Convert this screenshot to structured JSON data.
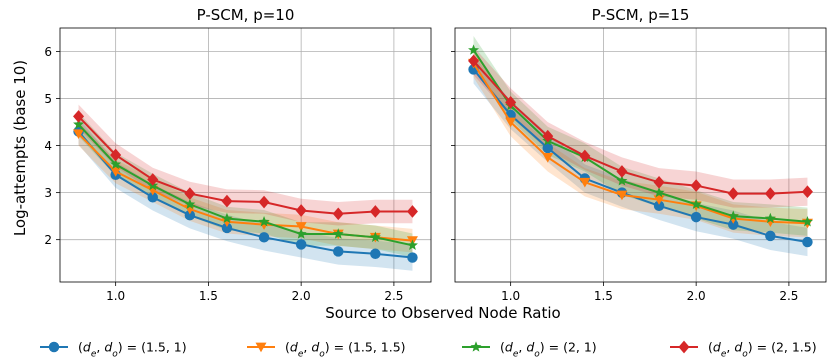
{
  "chart_data": {
    "type": "line",
    "ylabel": "Log-attempts (base 10)",
    "xlabel": "Source to Observed Node Ratio",
    "xlim": [
      0.7,
      2.7
    ],
    "ylim": [
      1.1,
      6.5
    ],
    "xticks": [
      "1.0",
      "1.5",
      "2.0",
      "2.5"
    ],
    "yticks": [
      "2",
      "3",
      "4",
      "5",
      "6"
    ],
    "grid": true,
    "legend_placement": "bottom",
    "series_styles": [
      {
        "color": "#1f77b4",
        "marker": "circle"
      },
      {
        "color": "#ff7f0e",
        "marker": "triangle-down"
      },
      {
        "color": "#2ca02c",
        "marker": "star"
      },
      {
        "color": "#d62728",
        "marker": "diamond"
      }
    ],
    "legend": [
      {
        "pre": "(",
        "d1": "d",
        "s1": "e",
        "mid": ", ",
        "d2": "d",
        "s2": "o",
        "post": ") = (1.5, 1)"
      },
      {
        "pre": "(",
        "d1": "d",
        "s1": "e",
        "mid": ", ",
        "d2": "d",
        "s2": "o",
        "post": ") = (1.5, 1.5)"
      },
      {
        "pre": "(",
        "d1": "d",
        "s1": "e",
        "mid": ", ",
        "d2": "d",
        "s2": "o",
        "post": ") = (2, 1)"
      },
      {
        "pre": "(",
        "d1": "d",
        "s1": "e",
        "mid": ", ",
        "d2": "d",
        "s2": "o",
        "post": ") = (2, 1.5)"
      }
    ],
    "panels": [
      {
        "title": "P-SCM, p=10",
        "x": [
          0.8,
          1.0,
          1.2,
          1.4,
          1.6,
          1.8,
          2.0,
          2.2,
          2.4,
          2.6
        ],
        "series": [
          {
            "values": [
              4.3,
              3.38,
              2.9,
              2.52,
              2.25,
              2.05,
              1.9,
              1.75,
              1.7,
              1.62
            ],
            "band": 0.28
          },
          {
            "values": [
              4.25,
              3.45,
              3.05,
              2.65,
              2.38,
              2.32,
              2.28,
              2.12,
              2.05,
              1.98
            ],
            "band": 0.25
          },
          {
            "values": [
              4.45,
              3.6,
              3.15,
              2.75,
              2.45,
              2.38,
              2.12,
              2.12,
              2.05,
              1.88
            ],
            "band": 0.25
          },
          {
            "values": [
              4.62,
              3.8,
              3.28,
              2.98,
              2.82,
              2.8,
              2.62,
              2.55,
              2.6,
              2.6
            ],
            "band": 0.25
          }
        ]
      },
      {
        "title": "P-SCM, p=15",
        "x": [
          0.8,
          1.0,
          1.2,
          1.4,
          1.6,
          1.8,
          2.0,
          2.2,
          2.4,
          2.6
        ],
        "series": [
          {
            "values": [
              5.62,
              4.65,
              3.95,
              3.3,
              3.0,
              2.72,
              2.48,
              2.32,
              2.08,
              1.95
            ],
            "band": 0.3
          },
          {
            "values": [
              5.75,
              4.5,
              3.75,
              3.22,
              2.95,
              2.85,
              2.72,
              2.45,
              2.38,
              2.35
            ],
            "band": 0.3
          },
          {
            "values": [
              6.03,
              4.85,
              4.1,
              3.75,
              3.25,
              3.0,
              2.75,
              2.5,
              2.45,
              2.38
            ],
            "band": 0.3
          },
          {
            "values": [
              5.8,
              4.92,
              4.2,
              3.78,
              3.45,
              3.22,
              3.15,
              2.98,
              2.98,
              3.02
            ],
            "band": 0.3
          }
        ]
      }
    ]
  }
}
